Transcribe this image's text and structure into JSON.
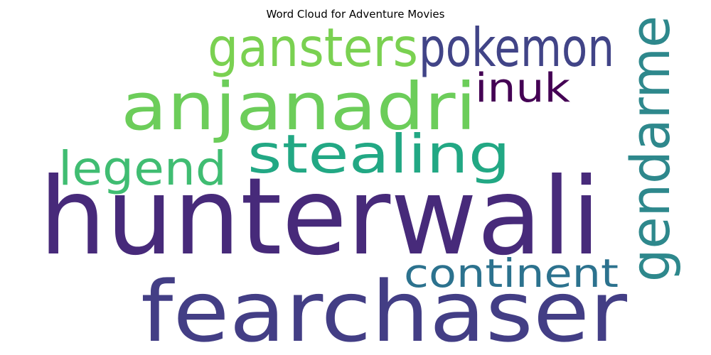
{
  "chart_data": {
    "type": "wordcloud",
    "title": "Word Cloud for Adventure Movies",
    "words": [
      {
        "text": "hunterwali",
        "weight": 1.0,
        "color": "#472a7a"
      },
      {
        "text": "fearchaser",
        "weight": 0.78,
        "color": "#433e85"
      },
      {
        "text": "anjanadri",
        "weight": 0.72,
        "color": "#6ccd5a"
      },
      {
        "text": "gendarme",
        "weight": 0.6,
        "color": "#2e888c"
      },
      {
        "text": "gansters",
        "weight": 0.56,
        "color": "#7ad151"
      },
      {
        "text": "pokemon",
        "weight": 0.55,
        "color": "#414487"
      },
      {
        "text": "stealing",
        "weight": 0.53,
        "color": "#22a884"
      },
      {
        "text": "legend",
        "weight": 0.48,
        "color": "#40bd72"
      },
      {
        "text": "continent",
        "weight": 0.45,
        "color": "#2c728e"
      },
      {
        "text": "inuk",
        "weight": 0.4,
        "color": "#440154"
      }
    ]
  }
}
